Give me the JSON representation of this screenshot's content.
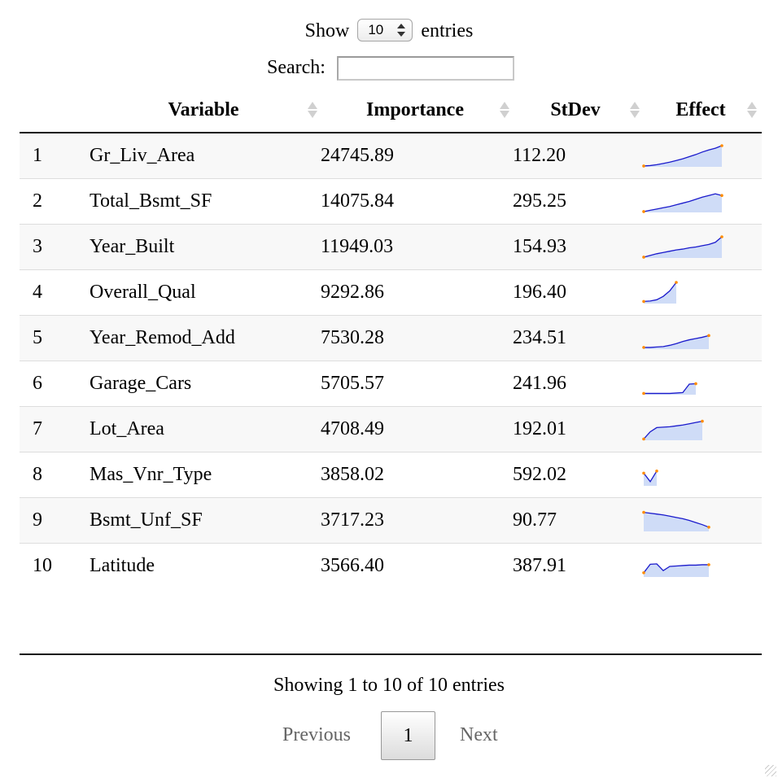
{
  "length": {
    "show_label": "Show",
    "value": "10",
    "entries_label": "entries"
  },
  "search": {
    "label": "Search:",
    "value": ""
  },
  "table": {
    "columns": [
      "",
      "Variable",
      "Importance",
      "StDev",
      "Effect"
    ],
    "rows": [
      {
        "num": "1",
        "variable": "Gr_Liv_Area",
        "importance": "24745.89",
        "stdev": "112.20",
        "effect": [
          0.04,
          0.06,
          0.1,
          0.16,
          0.22,
          0.3,
          0.38,
          0.48,
          0.58,
          0.7,
          0.8,
          0.88,
          1.0
        ]
      },
      {
        "num": "2",
        "variable": "Total_Bsmt_SF",
        "importance": "14075.84",
        "stdev": "295.25",
        "effect": [
          0.04,
          0.1,
          0.16,
          0.22,
          0.28,
          0.36,
          0.44,
          0.52,
          0.62,
          0.72,
          0.8,
          0.88,
          0.8
        ]
      },
      {
        "num": "3",
        "variable": "Year_Built",
        "importance": "11949.03",
        "stdev": "154.93",
        "effect": [
          0.04,
          0.12,
          0.2,
          0.26,
          0.32,
          0.38,
          0.42,
          0.48,
          0.52,
          0.58,
          0.64,
          0.74,
          1.0
        ]
      },
      {
        "num": "4",
        "variable": "Overall_Qual",
        "importance": "9292.86",
        "stdev": "196.40",
        "effect": [
          0.1,
          0.12,
          0.18,
          0.34,
          0.6,
          1.0
        ]
      },
      {
        "num": "5",
        "variable": "Year_Remod_Add",
        "importance": "7530.28",
        "stdev": "234.51",
        "effect": [
          0.08,
          0.08,
          0.1,
          0.12,
          0.18,
          0.26,
          0.36,
          0.44,
          0.5,
          0.56,
          0.64
        ]
      },
      {
        "num": "6",
        "variable": "Garage_Cars",
        "importance": "5705.57",
        "stdev": "241.96",
        "effect": [
          0.06,
          0.06,
          0.06,
          0.06,
          0.06,
          0.08,
          0.1,
          0.5,
          0.52
        ]
      },
      {
        "num": "7",
        "variable": "Lot_Area",
        "importance": "4708.49",
        "stdev": "192.01",
        "effect": [
          0.06,
          0.4,
          0.6,
          0.62,
          0.64,
          0.68,
          0.72,
          0.78,
          0.84,
          0.9
        ]
      },
      {
        "num": "8",
        "variable": "Mas_Vnr_Type",
        "importance": "3858.02",
        "stdev": "592.02",
        "effect": [
          0.6,
          0.2,
          0.7
        ]
      },
      {
        "num": "9",
        "variable": "Bsmt_Unf_SF",
        "importance": "3717.23",
        "stdev": "90.77",
        "effect": [
          0.9,
          0.86,
          0.82,
          0.78,
          0.72,
          0.66,
          0.6,
          0.52,
          0.42,
          0.32,
          0.2
        ]
      },
      {
        "num": "10",
        "variable": "Latitude",
        "importance": "3566.40",
        "stdev": "387.91",
        "effect": [
          0.2,
          0.6,
          0.62,
          0.3,
          0.5,
          0.52,
          0.54,
          0.56,
          0.56,
          0.58,
          0.58
        ]
      }
    ]
  },
  "info": "Showing 1 to 10 of 10 entries",
  "pagination": {
    "previous": "Previous",
    "current": "1",
    "next": "Next"
  },
  "colors": {
    "spark_line": "#1a1acc",
    "spark_fill": "#cfdcf7",
    "spark_end": "#ff8c00",
    "stripe": "#f8f8f8"
  }
}
